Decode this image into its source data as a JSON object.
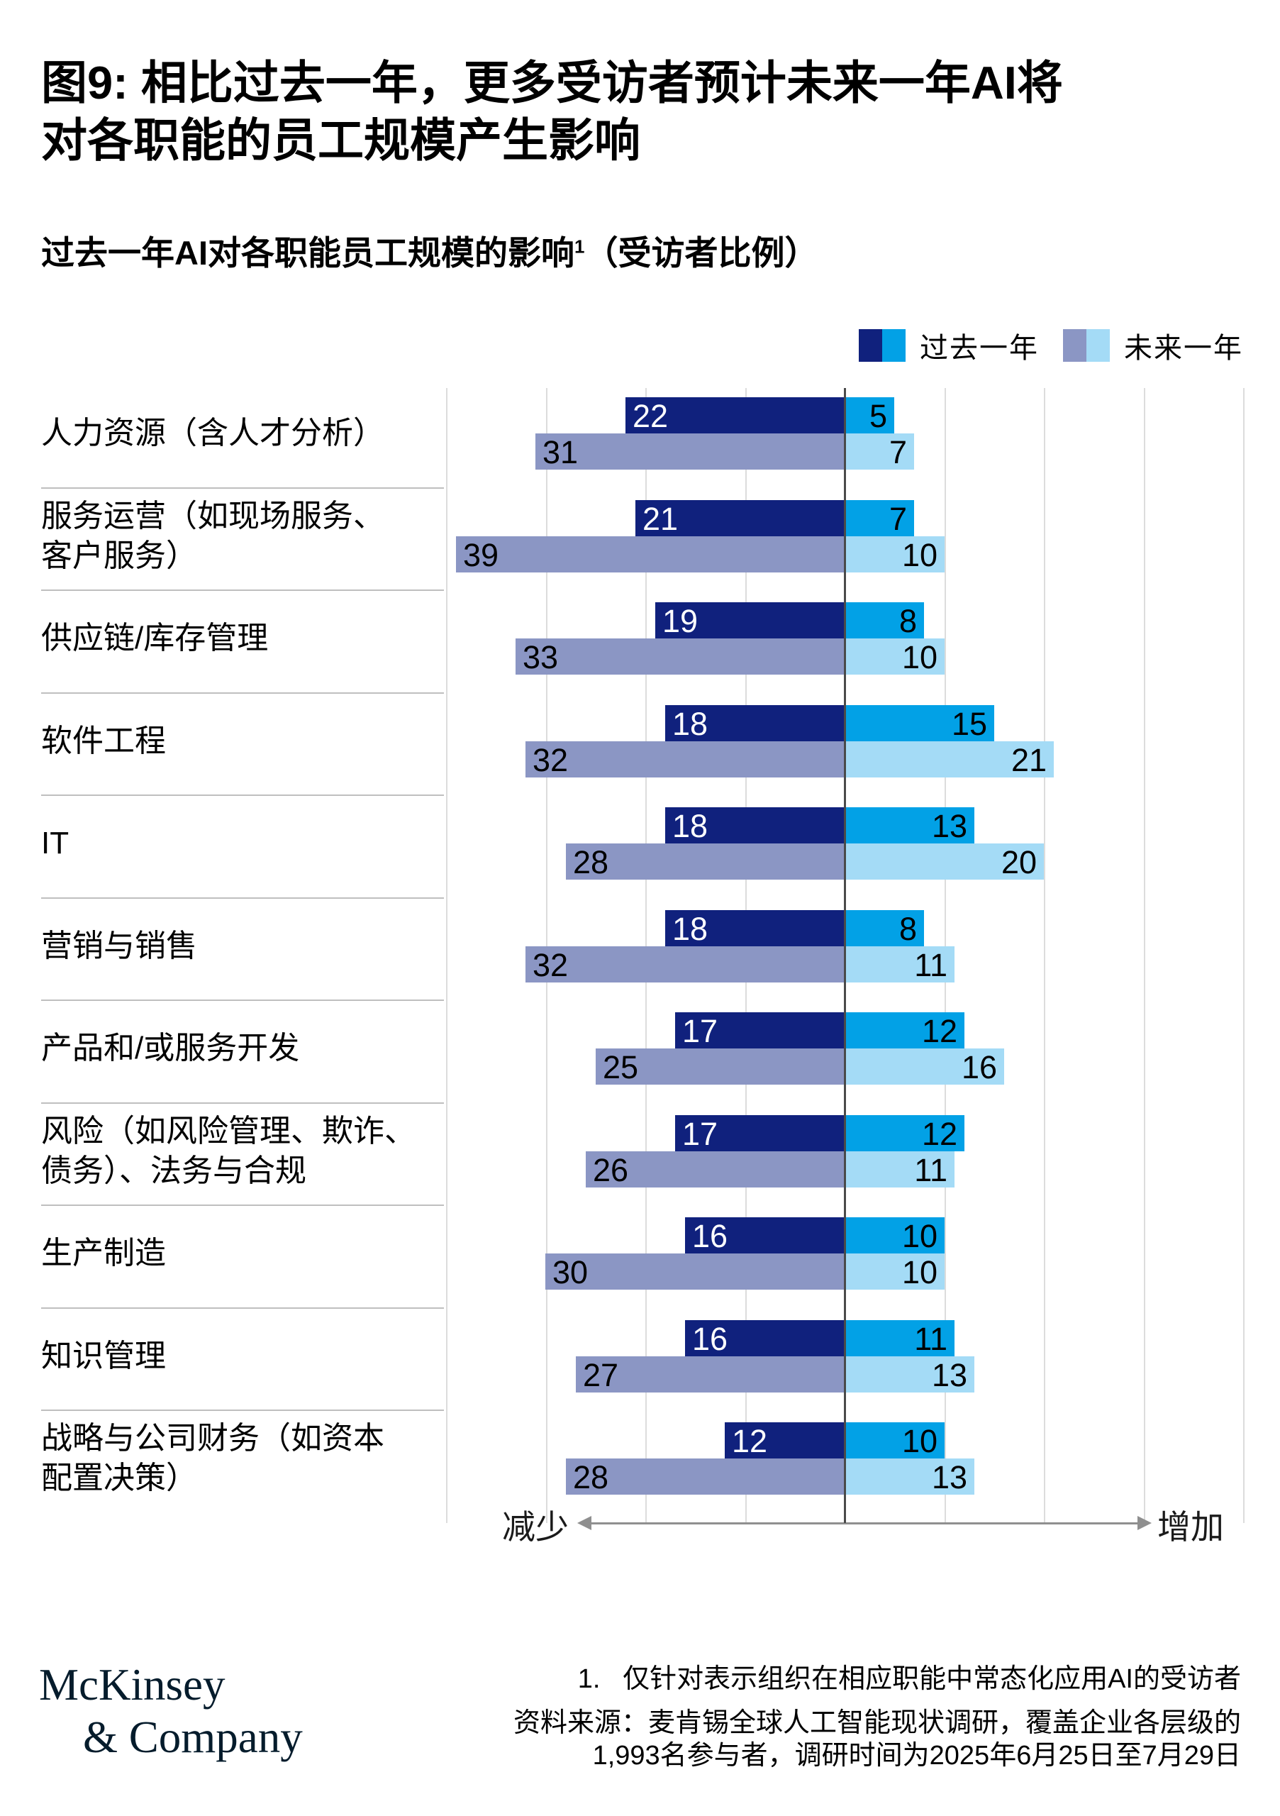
{
  "title": {
    "line1": "图9: 相比过去一年，更多受访者预计未来一年AI将",
    "line2": "对各职能的员工规模产生影响"
  },
  "subtitle": {
    "main": "过去一年AI对各职能员工规模的影响",
    "superscript": "1",
    "paren": "（受访者比例）"
  },
  "colors": {
    "past_decrease": "#10217d",
    "past_increase": "#02a1e6",
    "future_decrease": "#8b96c4",
    "future_increase": "#a4dbf6",
    "past_value_text": "#ffffff",
    "other_value_text": "#000000",
    "logo": "#051c2c"
  },
  "chart_data": {
    "type": "bar",
    "subtype": "diverging-grouped-horizontal",
    "title": "过去一年AI对各职能员工规模的影响（受访者比例）",
    "categories": [
      [
        "人力资源（含人才分析）"
      ],
      [
        "服务运营（如现场服务、",
        "客户服务）"
      ],
      [
        "供应链/库存管理"
      ],
      [
        "软件工程"
      ],
      [
        "IT"
      ],
      [
        "营销与销售"
      ],
      [
        "产品和/或服务开发"
      ],
      [
        "风险（如风险管理、欺诈、",
        "债务）、法务与合规"
      ],
      [
        "生产制造"
      ],
      [
        "知识管理"
      ],
      [
        "战略与公司财务（如资本",
        "配置决策）"
      ]
    ],
    "series": [
      {
        "name": "过去一年",
        "decrease": [
          22,
          21,
          19,
          18,
          18,
          18,
          17,
          17,
          16,
          16,
          12
        ],
        "increase": [
          5,
          7,
          8,
          15,
          13,
          8,
          12,
          12,
          10,
          11,
          10
        ]
      },
      {
        "name": "未来一年",
        "decrease": [
          31,
          39,
          33,
          32,
          28,
          32,
          25,
          26,
          30,
          27,
          28
        ],
        "increase": [
          7,
          10,
          10,
          21,
          20,
          11,
          16,
          11,
          10,
          13,
          13
        ]
      }
    ],
    "x_axis": {
      "min": -40,
      "max": 40,
      "gridline_step": 10,
      "left_label": "减少",
      "right_label": "增加"
    }
  },
  "footer": {
    "logo_line1": "McKinsey",
    "logo_line2": "& Company",
    "footnote": "1.   仅针对表示组织在相应职能中常态化应用AI的受访者",
    "source_line1": "资料来源：麦肯锡全球人工智能现状调研，覆盖企业各层级的",
    "source_line2": "1,993名参与者，调研时间为2025年6月25日至7月29日"
  }
}
